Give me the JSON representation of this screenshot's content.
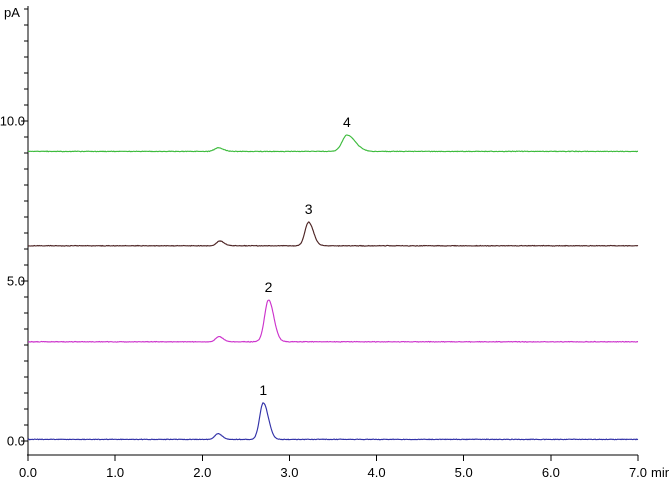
{
  "page": {
    "background_color": "#ffffff",
    "axis_color": "#000000",
    "text_color": "#000000"
  },
  "chart_data": {
    "type": "line",
    "title": "",
    "ylabel": "pA",
    "xlabel": "min",
    "grid": false,
    "legend": "none",
    "xlim": [
      0.0,
      7.0
    ],
    "ylim": [
      -0.4375,
      13.6
    ],
    "x_major_step": 1.0,
    "x_tick_labels": [
      "0.0",
      "1.0",
      "2.0",
      "3.0",
      "4.0",
      "5.0",
      "6.0",
      "7.0"
    ],
    "y_major_ticks": [
      {
        "value": 0.0,
        "label": "0.0"
      },
      {
        "value": 5.0,
        "label": "5.0"
      },
      {
        "value": 10.0,
        "label": "10.0"
      }
    ],
    "y_minor_step": 0.5,
    "noise_pA": 0.012,
    "series": [
      {
        "name": "chromatogram-trace-1",
        "color": "#3232a8",
        "baseline_pA": 0.05,
        "peaks": [
          {
            "t_min": 2.18,
            "height_pA": 0.18,
            "sigma_l": 0.035,
            "sigma_r": 0.05,
            "label": ""
          },
          {
            "t_min": 2.7,
            "height_pA": 1.14,
            "sigma_l": 0.042,
            "sigma_r": 0.058,
            "label": "1"
          }
        ]
      },
      {
        "name": "chromatogram-trace-2",
        "color": "#cc33cc",
        "baseline_pA": 3.1,
        "peaks": [
          {
            "t_min": 2.19,
            "height_pA": 0.16,
            "sigma_l": 0.035,
            "sigma_r": 0.05,
            "label": ""
          },
          {
            "t_min": 2.76,
            "height_pA": 1.31,
            "sigma_l": 0.045,
            "sigma_r": 0.06,
            "label": "2"
          }
        ]
      },
      {
        "name": "chromatogram-trace-3",
        "color": "#4d2424",
        "baseline_pA": 6.1,
        "peaks": [
          {
            "t_min": 2.2,
            "height_pA": 0.15,
            "sigma_l": 0.035,
            "sigma_r": 0.05,
            "label": ""
          },
          {
            "t_min": 3.22,
            "height_pA": 0.74,
            "sigma_l": 0.042,
            "sigma_r": 0.055,
            "label": "3"
          }
        ]
      },
      {
        "name": "chromatogram-trace-4",
        "color": "#3dbb3d",
        "baseline_pA": 9.05,
        "peaks": [
          {
            "t_min": 2.18,
            "height_pA": 0.11,
            "sigma_l": 0.04,
            "sigma_r": 0.06,
            "label": ""
          },
          {
            "t_min": 3.66,
            "height_pA": 0.51,
            "sigma_l": 0.055,
            "sigma_r": 0.095,
            "label": "4"
          }
        ]
      }
    ]
  }
}
